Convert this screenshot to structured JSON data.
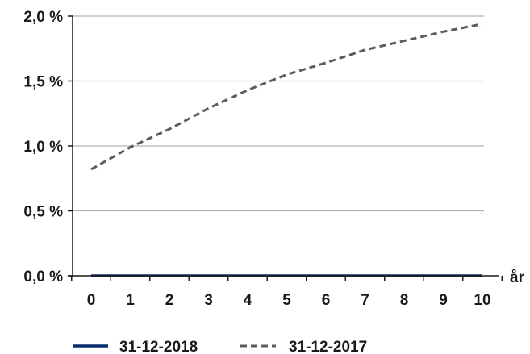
{
  "chart_data": {
    "type": "line",
    "x": [
      0,
      1,
      2,
      3,
      4,
      5,
      6,
      7,
      8,
      9,
      10
    ],
    "xlabel": "år",
    "ylabel": "",
    "ylim": [
      0.0,
      2.0
    ],
    "xlim": [
      0,
      10
    ],
    "grid": "horizontal",
    "legend_position": "bottom",
    "yticks": [
      "0,0 %",
      "0,5 %",
      "1,0 %",
      "1,5 %",
      "2,0 %"
    ],
    "ytick_values": [
      0.0,
      0.5,
      1.0,
      1.5,
      2.0
    ],
    "xticks": [
      "0",
      "1",
      "2",
      "3",
      "4",
      "5",
      "6",
      "7",
      "8",
      "9",
      "10"
    ],
    "series": [
      {
        "name": "31-12-2018",
        "color": "#0a2d6e",
        "style": "solid",
        "values": [
          0.0,
          0.0,
          0.0,
          0.0,
          0.0,
          0.0,
          0.0,
          0.0,
          0.0,
          0.0,
          0.0
        ]
      },
      {
        "name": "31-12-2017",
        "color": "#5c5c5c",
        "style": "dashed",
        "values": [
          0.82,
          0.99,
          1.13,
          1.29,
          1.43,
          1.55,
          1.64,
          1.74,
          1.81,
          1.88,
          1.94
        ]
      }
    ]
  }
}
